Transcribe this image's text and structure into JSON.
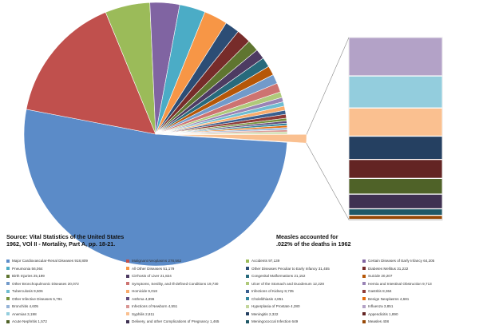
{
  "chart_data": {
    "type": "pie",
    "title": "",
    "source_note": "Source: Vital Statistics of the United States 1962, VOl II - Mortality, Part A, pp. 18-21.",
    "annotation": "Measles accounted for .022% of the deaths in 1962",
    "pie_slices": [
      {
        "label": "Major Cardiovascular-Renal Diseases",
        "value": 918809,
        "color": "#5b8bc8"
      },
      {
        "label": "Malignant Neoplasms",
        "value": 278562,
        "color": "#c0504d"
      },
      {
        "label": "Accidents",
        "value": 97139,
        "color": "#9bbb59"
      },
      {
        "label": "Certain Diseases of Early Infancy",
        "value": 64205,
        "color": "#8064a2"
      },
      {
        "label": "Pneumonia",
        "value": 56064,
        "color": "#4bacc6"
      },
      {
        "label": "All Other Diseases",
        "value": 51179,
        "color": "#f79646"
      },
      {
        "label": "Other Diseases Peculiar to Early Infancy",
        "value": 31455,
        "color": "#2c4d75"
      },
      {
        "label": "Diabetes Mellitus",
        "value": 31222,
        "color": "#772c2a"
      },
      {
        "label": "Birth Injuries",
        "value": 25199,
        "color": "#5f7530"
      },
      {
        "label": "Cirrhosis of Liver",
        "value": 21824,
        "color": "#4d3b62"
      },
      {
        "label": "Congenital Malformations",
        "value": 21152,
        "color": "#276a7c"
      },
      {
        "label": "Suicide",
        "value": 20207,
        "color": "#b65708"
      },
      {
        "label": "Other Bronchopulmonic Diseases",
        "value": 20072,
        "color": "#729aca"
      },
      {
        "label": "Symptoms, Senility, and Ill-defined Conditions",
        "value": 19730,
        "color": "#cd7371"
      },
      {
        "label": "Ulcer of the Stomach and Duodenum",
        "value": 12228,
        "color": "#afc97a"
      },
      {
        "label": "Hernia and Intestinal Obstruction",
        "value": 9713,
        "color": "#9983b5"
      },
      {
        "label": "Tuberculosis",
        "value": 9506,
        "color": "#6fbdd1"
      },
      {
        "label": "Homicide",
        "value": 9018,
        "color": "#f9ab6b"
      },
      {
        "label": "Infections of Kidney",
        "value": 8735,
        "color": "#3a5f8f"
      },
      {
        "label": "Gastritis",
        "value": 8364,
        "color": "#8f3a37"
      },
      {
        "label": "Other Infective Diseases",
        "value": 5791,
        "color": "#76923c"
      },
      {
        "label": "Asthma",
        "value": 4896,
        "color": "#604a7b"
      },
      {
        "label": "Cholelithiasis",
        "value": 4851,
        "color": "#31859c"
      },
      {
        "label": "Benign Neoplasms",
        "value": 4681,
        "color": "#e46c0a"
      },
      {
        "label": "Bronchitis",
        "value": 4605,
        "color": "#95b3d7"
      },
      {
        "label": "Infections of Newborn",
        "value": 4551,
        "color": "#d99694"
      },
      {
        "label": "Hyperplasia of Prostate",
        "value": 4280,
        "color": "#c3d69b"
      },
      {
        "label": "Influenza",
        "value": 3851,
        "color": "#b3a2c7"
      },
      {
        "label": "Anemias",
        "value": 3198,
        "color": "#93cddd"
      },
      {
        "label": "Syphilis",
        "value": 2811,
        "color": "#fac090"
      },
      {
        "label": "Meningitis",
        "value": 2322,
        "color": "#254061"
      },
      {
        "label": "Appendicitis",
        "value": 1890,
        "color": "#632423"
      },
      {
        "label": "Acute Nephritis",
        "value": 1572,
        "color": "#4f6228"
      },
      {
        "label": "Delivery, and other Complications of Pregnancy",
        "value": 1465,
        "color": "#3f3151"
      },
      {
        "label": "Meningococcal Infection",
        "value": 649,
        "color": "#205867"
      },
      {
        "label": "Measles",
        "value": 408,
        "color": "#974806"
      }
    ],
    "exploded_detail": [
      {
        "color": "#b3a2c7"
      },
      {
        "color": "#93cddd"
      },
      {
        "color": "#fac090"
      },
      {
        "color": "#254061"
      },
      {
        "color": "#632423"
      },
      {
        "color": "#4f6228"
      },
      {
        "color": "#3f3151"
      },
      {
        "color": "#205867"
      },
      {
        "color": "#974806"
      }
    ],
    "legend_entries": [
      "Major Cardiovascular-Renal Diseases 918,809",
      "Malignant Neoplasms 278,562",
      "Accidents 97,139",
      "Certain Diseases of Early Infancy 64,205",
      "Pneumonia 56,064",
      "All Other Diseases 51,179",
      "Other Diseases Peculiar to Early Infancy 31,455",
      "Diabetes Mellitus 31,222",
      "Birth Injuries 25,199",
      "Cirrhosis of Liver 21,824",
      "Congenital Malformations 21,152",
      "Suicide 20,207",
      "Other Bronchopulmonic Diseases 20,072",
      "Symptoms, Senility, and Ill-defined Conditions 19,730",
      "Ulcer of the Stomach and Duodenum 12,228",
      "Hernia and Intestinal Obstruction 9,713",
      "Tuberculosis 9,506",
      "Homicide 9,018",
      "Infections of Kidney 8,735",
      "Gastritis 8,364",
      "Other Infective Diseases 5,791",
      "Asthma 4,896",
      "Cholelithiasis 4,851",
      "Benign Neoplasms 4,681",
      "Bronchitis 4,605",
      "Infections of Newborn 4,551",
      "Hyperplasia of Prostate 4,280",
      "Influenza 3,851",
      "Anemias 3,198",
      "Syphilis 2,811",
      "Meningitis 2,322",
      "Appendicitis 1,890",
      "Acute Nephritis 1,572",
      "Delivery, and other Complications of Pregnancy 1,465",
      "Meningococcal Infection 649",
      "Measles 408"
    ],
    "legend_columns": 4,
    "legend_placement": "bottom"
  }
}
